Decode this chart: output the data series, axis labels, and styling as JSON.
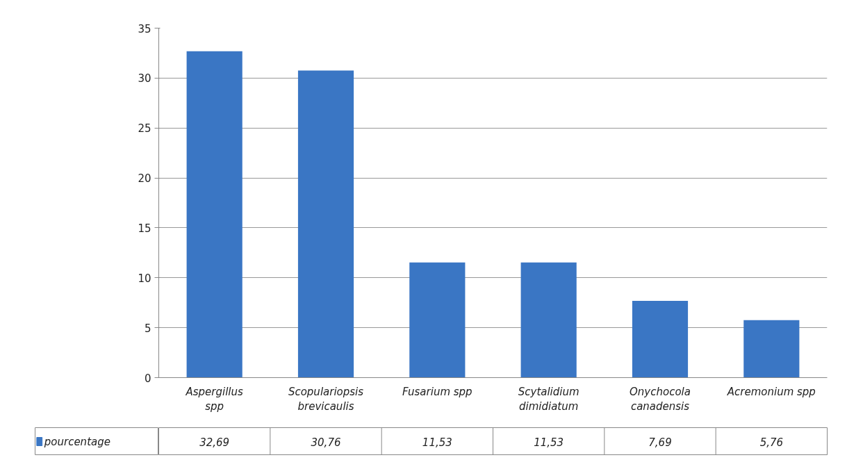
{
  "chart_data": {
    "type": "bar",
    "categories": [
      "Aspergillus spp",
      "Scopulariopsis brevicaulis",
      "Fusarium spp",
      "Scytalidium dimidiatum",
      "Onychocola canadensis",
      "Acremonium spp"
    ],
    "series": [
      {
        "name": "pourcentage",
        "color": "#3a76c4",
        "values": [
          32.69,
          30.76,
          11.53,
          11.53,
          7.69,
          5.76
        ],
        "value_labels": [
          "32,69",
          "30,76",
          "11,53",
          "11,53",
          "7,69",
          "5,76"
        ]
      }
    ],
    "ylim": [
      0,
      35
    ],
    "yticks": [
      0,
      5,
      10,
      15,
      20,
      25,
      30,
      35
    ],
    "grid": "y",
    "data_labels": true,
    "legend": "bottom left"
  }
}
